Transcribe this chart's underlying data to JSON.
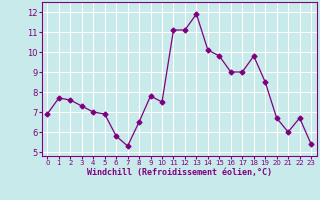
{
  "x": [
    0,
    1,
    2,
    3,
    4,
    5,
    6,
    7,
    8,
    9,
    10,
    11,
    12,
    13,
    14,
    15,
    16,
    17,
    18,
    19,
    20,
    21,
    22,
    23
  ],
  "y": [
    6.9,
    7.7,
    7.6,
    7.3,
    7.0,
    6.9,
    5.8,
    5.3,
    6.5,
    7.8,
    7.5,
    11.1,
    11.1,
    11.9,
    10.1,
    9.8,
    9.0,
    9.0,
    9.8,
    8.5,
    6.7,
    6.0,
    6.7,
    5.4
  ],
  "line_color": "#800080",
  "marker": "D",
  "marker_size": 2.5,
  "bg_color": "#c8eaea",
  "grid_color": "#ffffff",
  "xlabel": "Windchill (Refroidissement éolien,°C)",
  "ylim": [
    4.8,
    12.5
  ],
  "xlim": [
    -0.5,
    23.5
  ],
  "yticks": [
    5,
    6,
    7,
    8,
    9,
    10,
    11,
    12
  ],
  "xticks": [
    0,
    1,
    2,
    3,
    4,
    5,
    6,
    7,
    8,
    9,
    10,
    11,
    12,
    13,
    14,
    15,
    16,
    17,
    18,
    19,
    20,
    21,
    22,
    23
  ],
  "tick_color": "#800080",
  "label_color": "#800080",
  "axis_color": "#800080"
}
